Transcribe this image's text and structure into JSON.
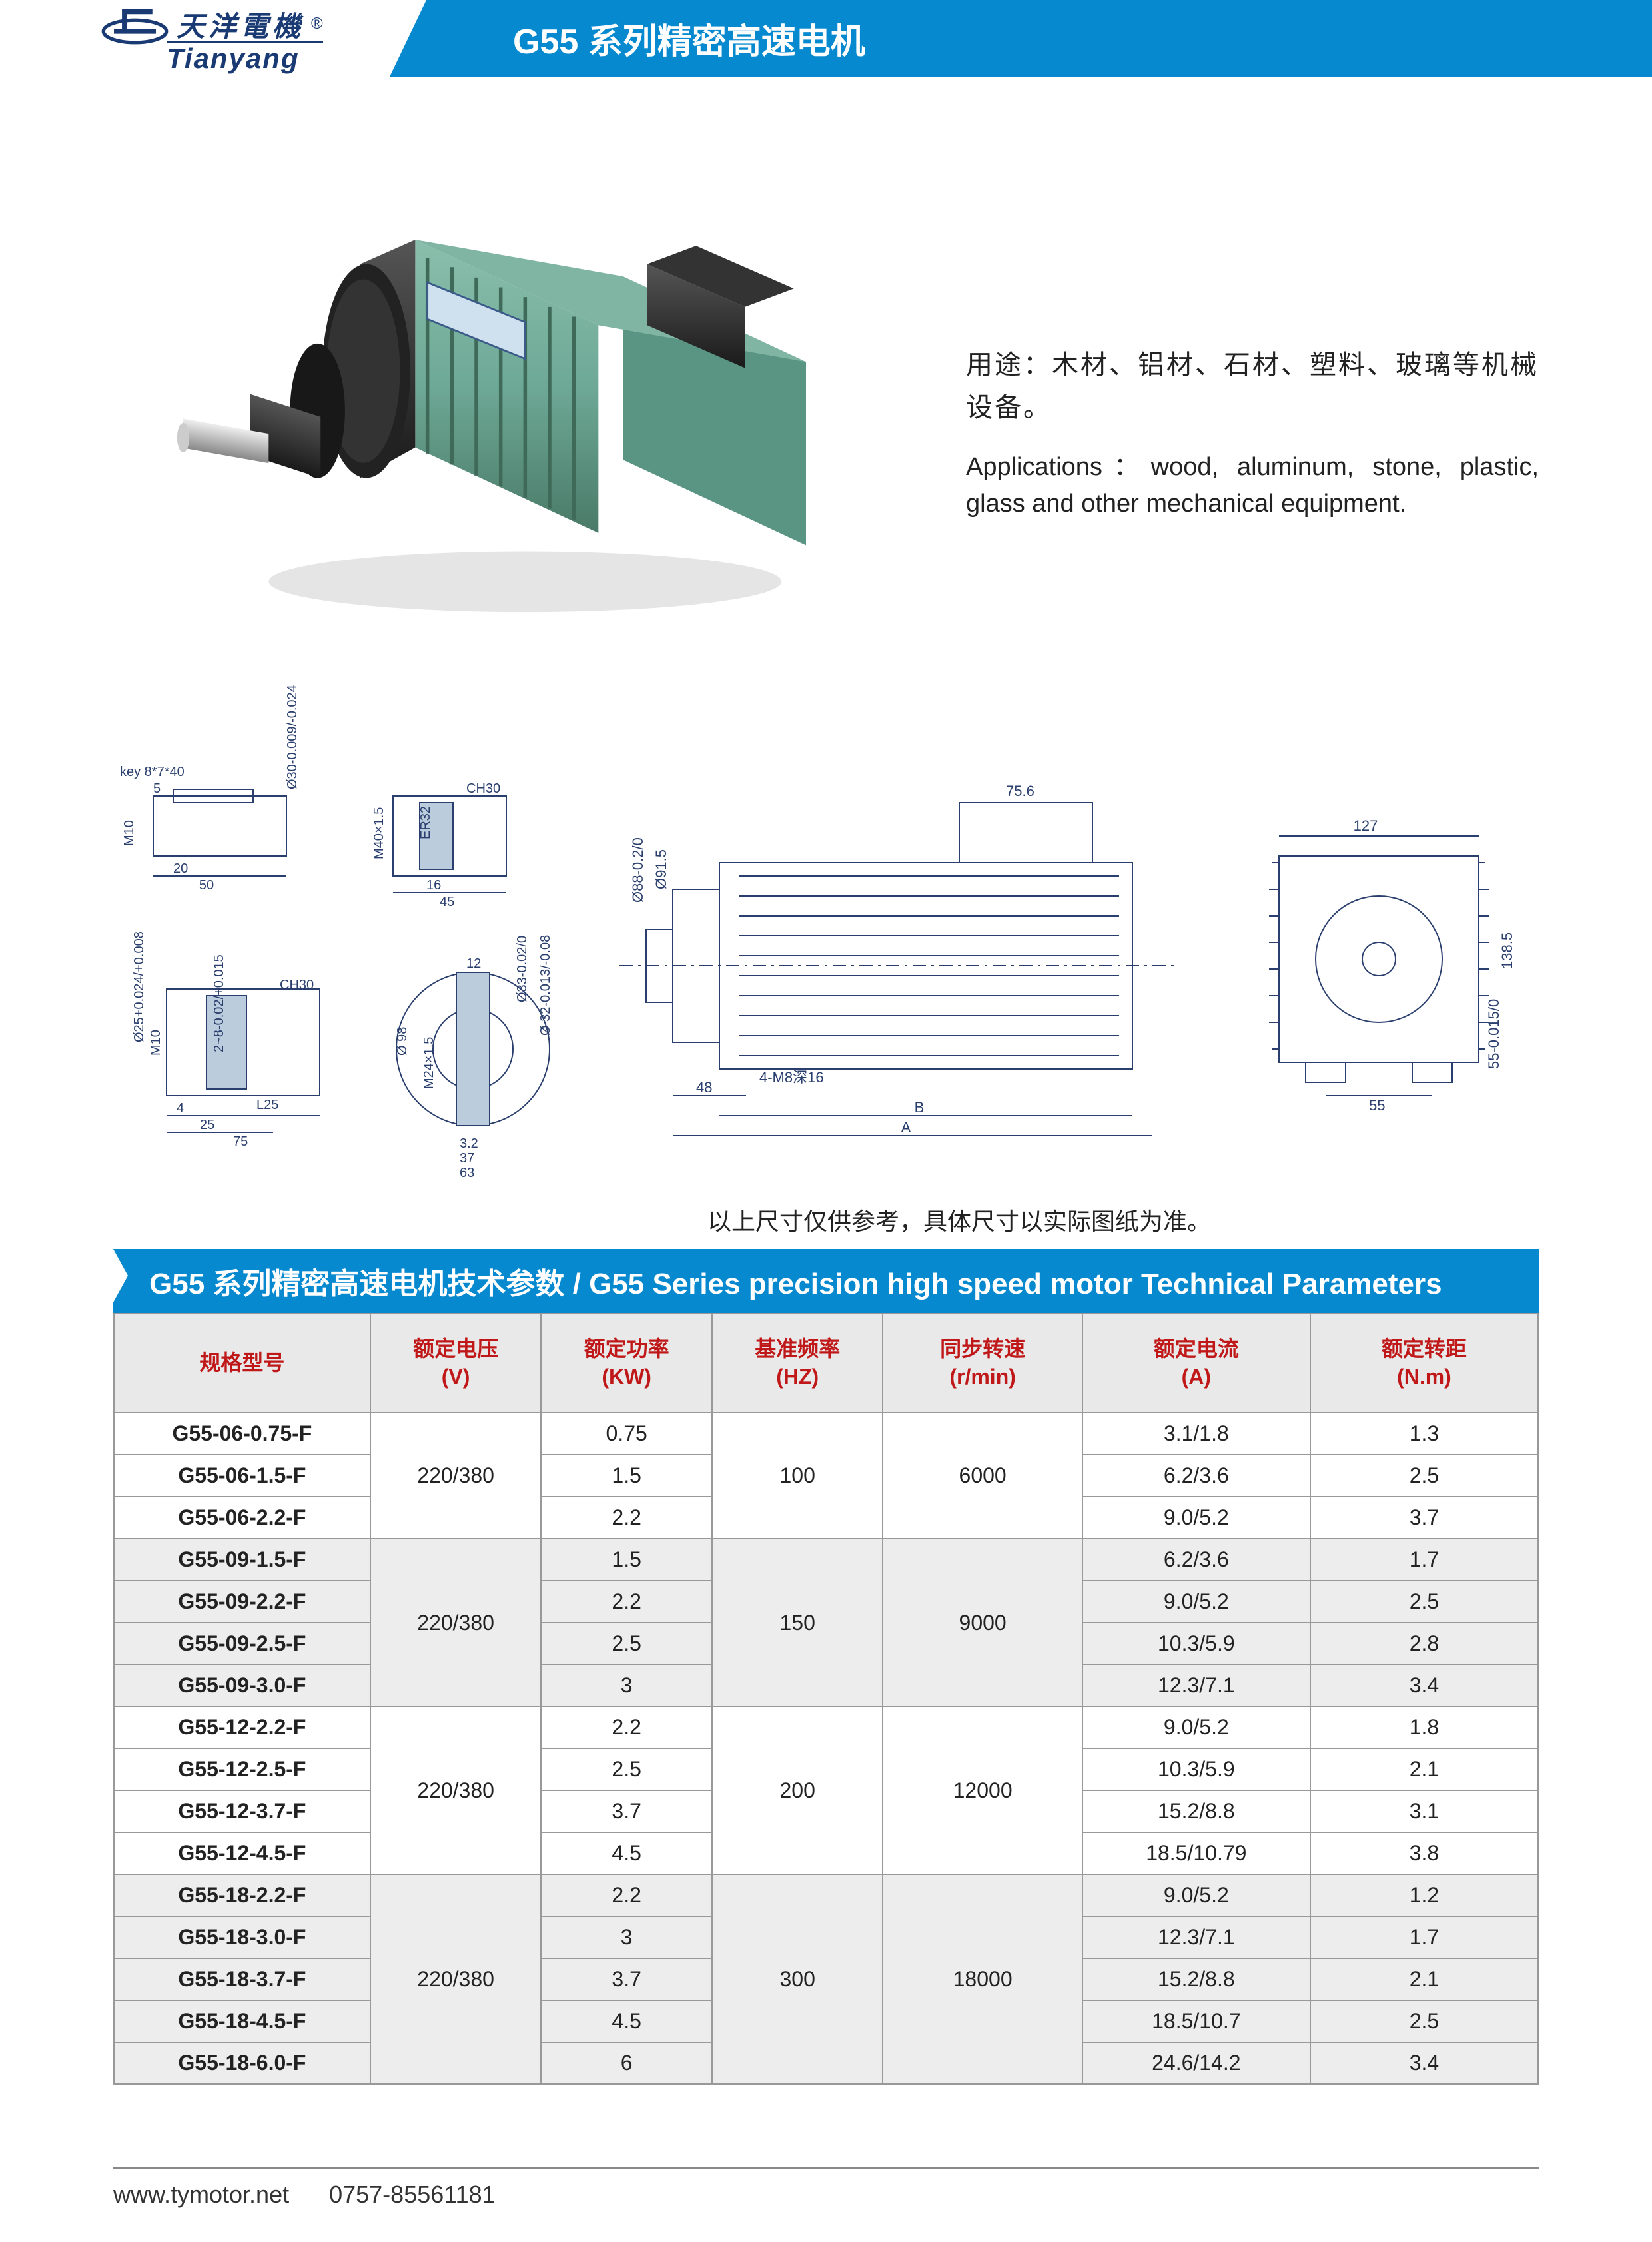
{
  "header": {
    "logo_cn": "天洋電機",
    "logo_en": "Tianyang",
    "page_title": "G55 系列精密高速电机"
  },
  "product": {
    "desc_cn": "用途：木材、铝材、石材、塑料、玻璃等机械设备。",
    "desc_en": "Applications：wood, aluminum, stone, plastic, glass and other mechanical equipment."
  },
  "drawing": {
    "labels": {
      "key": "key 8*7*40",
      "m10": "M10",
      "d30": "Ø30-0.009/-0.024",
      "w50": "50",
      "w20": "20",
      "w5": "5",
      "ch30": "CH30",
      "m40": "M40×1.5",
      "er32": "ER32",
      "w16": "16",
      "w45": "45",
      "d25": "Ø25+0.024/+0.008",
      "w4": "4",
      "w25": "25",
      "w75": "75",
      "l25b": "L25",
      "d8": "2~8-0.02/+0.015",
      "d98": "Ø 98",
      "m24": "M24×1.5",
      "w12": "12",
      "d33": "Ø33-0.02/0",
      "d32": "Ø 32-0.013/-0.08",
      "w32": "3.2",
      "w37": "37",
      "w63": "63",
      "d88": "Ø88-0.2/0",
      "d91": "Ø91.5",
      "w756": "75.6",
      "m8": "4-M8深16",
      "w48": "48",
      "dimA": "A",
      "dimB": "B",
      "w127": "127",
      "h138": "138.5",
      "w55": "55",
      "h55b": "55-0.015/0"
    },
    "note": "以上尺寸仅供参考，具体尺寸以实际图纸为准。"
  },
  "section_title": "G55 系列精密高速电机技术参数 / G55 Series precision high speed motor Technical Parameters",
  "table": {
    "columns": [
      "规格型号",
      "额定电压\n(V)",
      "额定功率\n(KW)",
      "基准频率\n(HZ)",
      "同步转速\n(r/min)",
      "额定电流\n(A)",
      "额定转距\n(N.m)"
    ],
    "col_widths": [
      "18%",
      "12%",
      "12%",
      "12%",
      "14%",
      "16%",
      "16%"
    ],
    "groups": [
      {
        "voltage": "220/380",
        "hz": "100",
        "rpm": "6000",
        "rows": [
          {
            "model": "G55-06-0.75-F",
            "kw": "0.75",
            "a": "3.1/1.8",
            "nm": "1.3"
          },
          {
            "model": "G55-06-1.5-F",
            "kw": "1.5",
            "a": "6.2/3.6",
            "nm": "2.5"
          },
          {
            "model": "G55-06-2.2-F",
            "kw": "2.2",
            "a": "9.0/5.2",
            "nm": "3.7"
          }
        ]
      },
      {
        "voltage": "220/380",
        "hz": "150",
        "rpm": "9000",
        "rows": [
          {
            "model": "G55-09-1.5-F",
            "kw": "1.5",
            "a": "6.2/3.6",
            "nm": "1.7"
          },
          {
            "model": "G55-09-2.2-F",
            "kw": "2.2",
            "a": "9.0/5.2",
            "nm": "2.5"
          },
          {
            "model": "G55-09-2.5-F",
            "kw": "2.5",
            "a": "10.3/5.9",
            "nm": "2.8"
          },
          {
            "model": "G55-09-3.0-F",
            "kw": "3",
            "a": "12.3/7.1",
            "nm": "3.4"
          }
        ]
      },
      {
        "voltage": "220/380",
        "hz": "200",
        "rpm": "12000",
        "rows": [
          {
            "model": "G55-12-2.2-F",
            "kw": "2.2",
            "a": "9.0/5.2",
            "nm": "1.8"
          },
          {
            "model": "G55-12-2.5-F",
            "kw": "2.5",
            "a": "10.3/5.9",
            "nm": "2.1"
          },
          {
            "model": "G55-12-3.7-F",
            "kw": "3.7",
            "a": "15.2/8.8",
            "nm": "3.1"
          },
          {
            "model": "G55-12-4.5-F",
            "kw": "4.5",
            "a": "18.5/10.79",
            "nm": "3.8"
          }
        ]
      },
      {
        "voltage": "220/380",
        "hz": "300",
        "rpm": "18000",
        "rows": [
          {
            "model": "G55-18-2.2-F",
            "kw": "2.2",
            "a": "9.0/5.2",
            "nm": "1.2"
          },
          {
            "model": "G55-18-3.0-F",
            "kw": "3",
            "a": "12.3/7.1",
            "nm": "1.7"
          },
          {
            "model": "G55-18-3.7-F",
            "kw": "3.7",
            "a": "15.2/8.8",
            "nm": "2.1"
          },
          {
            "model": "G55-18-4.5-F",
            "kw": "4.5",
            "a": "18.5/10.7",
            "nm": "2.5"
          },
          {
            "model": "G55-18-6.0-F",
            "kw": "6",
            "a": "24.6/14.2",
            "nm": "3.4"
          }
        ]
      }
    ],
    "header_bg": "#e9e9e9",
    "header_color": "#c01818",
    "border_color": "#999999",
    "group_even_bg": "#ededed"
  },
  "footer": {
    "url": "www.tymotor.net",
    "phone": "0757-85561181"
  },
  "colors": {
    "brand_blue": "#0789d0",
    "logo_navy": "#1a3a73",
    "motor_green": "#6ea896",
    "motor_dark": "#2a2a2a",
    "drawing_stroke": "#2a3f6e"
  }
}
